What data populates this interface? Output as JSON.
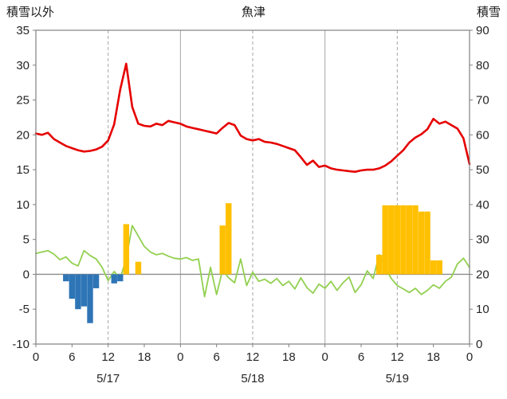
{
  "titles": {
    "left_axis": "積雪以外",
    "station": "魚津",
    "right_axis": "積雪"
  },
  "chart_data": {
    "type": "line+bar",
    "title": "魚津",
    "hours_total": 72,
    "left_axis": {
      "label": "積雪以外",
      "min": -10,
      "max": 35,
      "step": 5,
      "ticks": [
        35,
        30,
        25,
        20,
        15,
        10,
        5,
        0,
        -5,
        -10
      ]
    },
    "right_axis": {
      "label": "積雪",
      "min": 0,
      "max": 90,
      "step": 10,
      "ticks": [
        90,
        80,
        70,
        60,
        50,
        40,
        30,
        20,
        10,
        0
      ]
    },
    "x_ticks": [
      {
        "hour": 0,
        "label": "0"
      },
      {
        "hour": 6,
        "label": "6"
      },
      {
        "hour": 12,
        "label": "12"
      },
      {
        "hour": 18,
        "label": "18"
      },
      {
        "hour": 24,
        "label": "0"
      },
      {
        "hour": 30,
        "label": "6"
      },
      {
        "hour": 36,
        "label": "12"
      },
      {
        "hour": 42,
        "label": "18"
      },
      {
        "hour": 48,
        "label": "0"
      },
      {
        "hour": 54,
        "label": "6"
      },
      {
        "hour": 60,
        "label": "12"
      },
      {
        "hour": 66,
        "label": "18"
      },
      {
        "hour": 72,
        "label": "0"
      }
    ],
    "date_labels": [
      {
        "hour": 12,
        "label": "5/17"
      },
      {
        "hour": 36,
        "label": "5/18"
      },
      {
        "hour": 60,
        "label": "5/19"
      }
    ],
    "gridlines": {
      "solid_hours": [
        24,
        48
      ],
      "dashed_hours": [
        12,
        36,
        60
      ]
    },
    "colors": {
      "red_line": "#e60000",
      "green_line": "#92d050",
      "blue_bars": "#2e75b6",
      "orange_bars": "#ffc000",
      "frame": "#808080",
      "grid": "#a6a6a6",
      "zero_line": "#8c8c8c"
    },
    "series": [
      {
        "name": "red-series-line",
        "type": "line",
        "color_key": "red_line",
        "stroke_width": 2.6,
        "x_start_hour": 0,
        "x_step_hours": 1,
        "values": [
          20.2,
          20.0,
          20.3,
          19.4,
          18.9,
          18.4,
          18.1,
          17.8,
          17.6,
          17.7,
          17.9,
          18.3,
          19.2,
          21.5,
          26.5,
          30.2,
          24.0,
          21.6,
          21.3,
          21.2,
          21.6,
          21.4,
          22.0,
          21.8,
          21.6,
          21.2,
          21.0,
          20.8,
          20.6,
          20.4,
          20.2,
          21.0,
          21.7,
          21.4,
          19.9,
          19.4,
          19.2,
          19.4,
          19.0,
          18.9,
          18.7,
          18.4,
          18.1,
          17.8,
          16.8,
          15.7,
          16.3,
          15.4,
          15.6,
          15.2,
          15.0,
          14.9,
          14.8,
          14.7,
          14.9,
          15.0,
          15.0,
          15.2,
          15.6,
          16.2,
          17.0,
          17.8,
          18.9,
          19.6,
          20.1,
          20.8,
          22.3,
          21.6,
          21.9,
          21.4,
          20.9,
          19.5,
          15.8
        ]
      },
      {
        "name": "green-series-line",
        "type": "line",
        "color_key": "green_line",
        "stroke_width": 1.8,
        "x_start_hour": 0,
        "x_step_hours": 1,
        "values": [
          3.0,
          3.2,
          3.4,
          2.9,
          2.1,
          2.5,
          1.6,
          1.2,
          3.4,
          2.7,
          2.2,
          1.0,
          -0.9,
          0.4,
          -0.6,
          2.2,
          7.0,
          5.5,
          4.0,
          3.2,
          2.8,
          3.0,
          2.6,
          2.3,
          2.2,
          2.4,
          2.0,
          2.2,
          -3.2,
          1.0,
          -2.9,
          0.6,
          -0.5,
          -1.2,
          2.2,
          -1.6,
          0.3,
          -1.0,
          -0.7,
          -1.3,
          -0.6,
          -1.6,
          -1.0,
          -2.1,
          -0.5,
          -1.9,
          -2.7,
          -1.4,
          -2.0,
          -1.0,
          -2.3,
          -1.2,
          -0.4,
          -2.6,
          -1.5,
          0.5,
          -0.6,
          2.8,
          1.0,
          -0.6,
          -1.6,
          -2.1,
          -2.6,
          -2.0,
          -2.9,
          -2.3,
          -1.5,
          -2.0,
          -1.0,
          -0.4,
          1.5,
          2.3,
          1.0
        ]
      },
      {
        "name": "blue-bar-series",
        "type": "bar",
        "color_key": "blue_bars",
        "bars": [
          [
            5,
            -1.0
          ],
          [
            6,
            -3.5
          ],
          [
            7,
            -5.0
          ],
          [
            8,
            -4.6
          ],
          [
            9,
            -7.0
          ],
          [
            10,
            -2.0
          ],
          [
            13,
            -1.3
          ],
          [
            14,
            -1.0
          ]
        ]
      },
      {
        "name": "orange-bar-series",
        "type": "bar",
        "color_key": "orange_bars",
        "bars": [
          [
            15,
            7.2
          ],
          [
            17,
            1.8
          ],
          [
            31,
            7.0
          ],
          [
            32,
            10.2
          ],
          [
            57,
            2.8
          ],
          [
            58,
            9.9
          ],
          [
            59,
            9.9
          ],
          [
            60,
            9.9
          ],
          [
            61,
            9.9
          ],
          [
            62,
            9.9
          ],
          [
            63,
            9.9
          ],
          [
            64,
            9.0
          ],
          [
            65,
            9.0
          ],
          [
            66,
            2.0
          ],
          [
            67,
            2.0
          ]
        ]
      }
    ]
  }
}
